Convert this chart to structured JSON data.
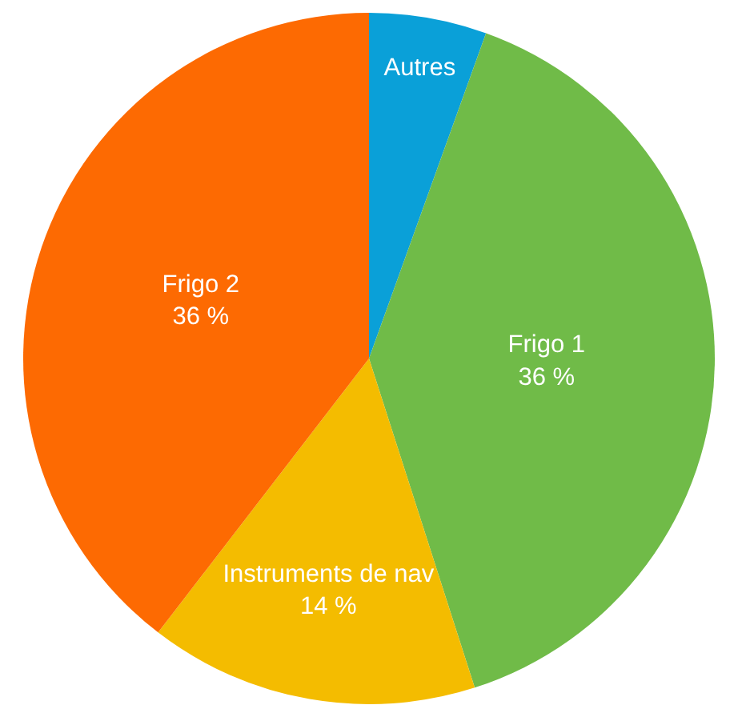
{
  "chart_data": {
    "type": "pie",
    "categories": [
      "Autres",
      "Frigo 1",
      "Instruments de nav",
      "Frigo 2"
    ],
    "values": [
      5,
      36,
      14,
      36
    ],
    "value_labels": [
      null,
      "36 %",
      "14 %",
      "36 %"
    ],
    "colors": [
      "#0aa0d8",
      "#70bb48",
      "#f4bc00",
      "#fd6a02"
    ],
    "legend": false
  }
}
